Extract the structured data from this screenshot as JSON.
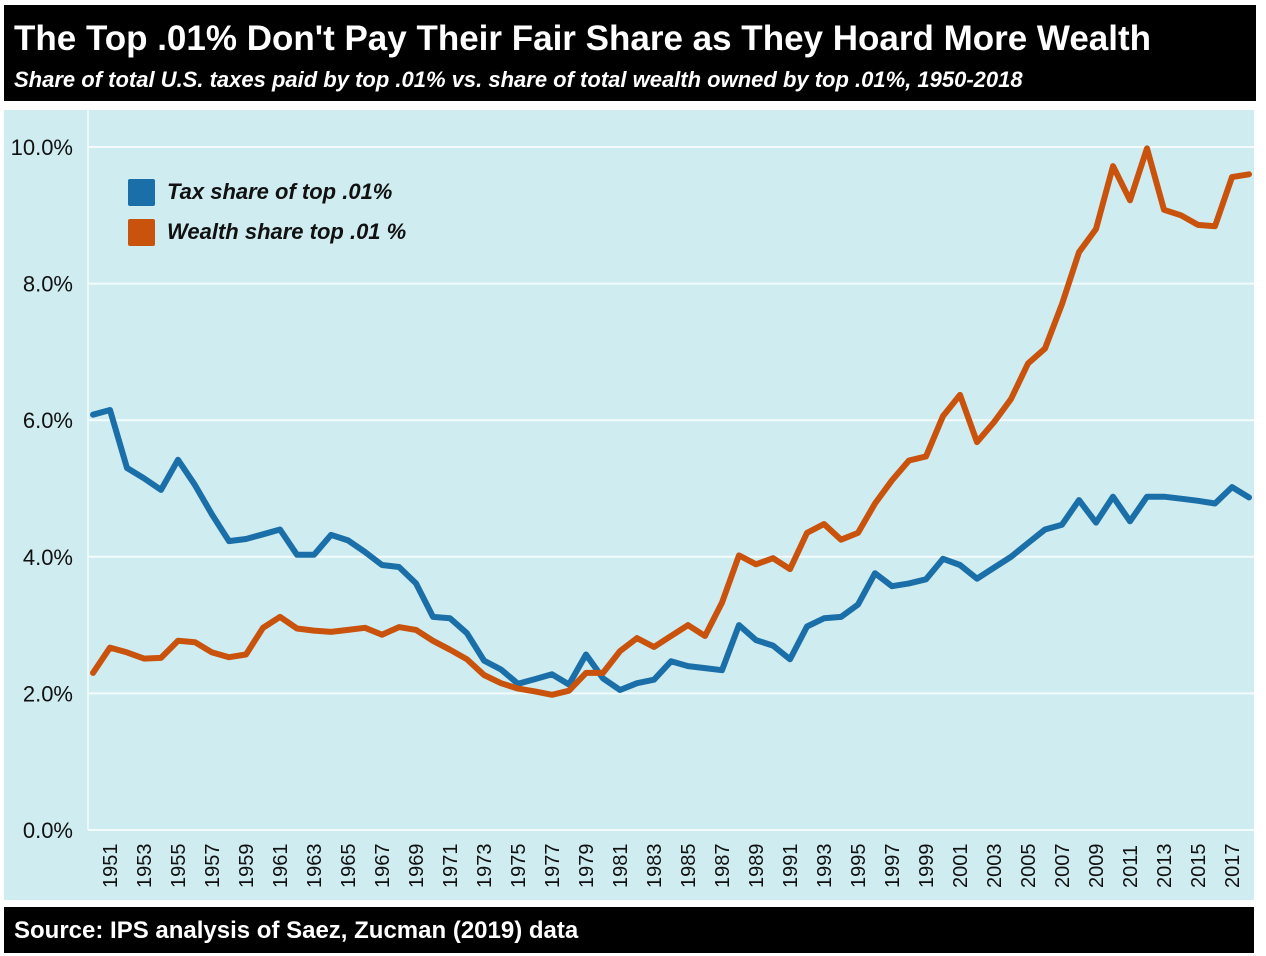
{
  "header": {
    "title": "The Top .01% Don't Pay Their Fair Share as They Hoard More Wealth",
    "subtitle": "Share of total U.S. taxes paid by top .01% vs. share of total wealth owned by top .01%, 1950-2018"
  },
  "footer": {
    "source": "Source: IPS analysis of Saez, Zucman (2019) data"
  },
  "colors": {
    "header_bg": "#000000",
    "plot_bg": "#cfecf0",
    "gridline": "#f4fbfc",
    "tax_series": "#1b6fa8",
    "wealth_series": "#c9530c"
  },
  "chart_data": {
    "type": "line",
    "title": "The Top .01% Don't Pay Their Fair Share as They Hoard More Wealth",
    "subtitle": "Share of total U.S. taxes paid by top .01% vs. share of total wealth owned by top .01%, 1950-2018",
    "xlabel": "",
    "ylabel": "",
    "ylim": [
      0,
      10
    ],
    "xlim": [
      1950,
      2018
    ],
    "grid": true,
    "legend_position": "top-left",
    "y_ticks": [
      "0.0%",
      "2.0%",
      "4.0%",
      "6.0%",
      "8.0%",
      "10.0%"
    ],
    "y_tick_values": [
      0,
      2,
      4,
      6,
      8,
      10
    ],
    "x_tick_labels": [
      "1951",
      "1953",
      "1955",
      "1957",
      "1959",
      "1961",
      "1963",
      "1965",
      "1967",
      "1969",
      "1971",
      "1973",
      "1975",
      "1977",
      "1979",
      "1981",
      "1983",
      "1985",
      "1987",
      "1989",
      "1991",
      "1993",
      "1995",
      "1997",
      "1999",
      "2001",
      "2003",
      "2005",
      "2007",
      "2009",
      "2011",
      "2013",
      "2015",
      "2017"
    ],
    "x": [
      1950,
      1951,
      1952,
      1953,
      1954,
      1955,
      1956,
      1957,
      1958,
      1959,
      1960,
      1961,
      1962,
      1963,
      1964,
      1965,
      1966,
      1967,
      1968,
      1969,
      1970,
      1971,
      1972,
      1973,
      1974,
      1975,
      1976,
      1977,
      1978,
      1979,
      1980,
      1981,
      1982,
      1983,
      1984,
      1985,
      1986,
      1987,
      1988,
      1989,
      1990,
      1991,
      1992,
      1993,
      1994,
      1995,
      1996,
      1997,
      1998,
      1999,
      2000,
      2001,
      2002,
      2003,
      2004,
      2005,
      2006,
      2007,
      2008,
      2009,
      2010,
      2011,
      2012,
      2013,
      2014,
      2015,
      2016,
      2017,
      2018
    ],
    "series": [
      {
        "name": "Tax share of top .01%",
        "color": "#1b6fa8",
        "values": [
          6.08,
          6.15,
          5.3,
          5.15,
          4.98,
          5.42,
          5.05,
          4.62,
          4.23,
          4.26,
          4.33,
          4.4,
          4.03,
          4.03,
          4.32,
          4.24,
          4.07,
          3.88,
          3.85,
          3.61,
          3.12,
          3.1,
          2.88,
          2.48,
          2.35,
          2.14,
          2.21,
          2.28,
          2.13,
          2.57,
          2.22,
          2.05,
          2.15,
          2.2,
          2.47,
          2.4,
          2.37,
          2.34,
          3.0,
          2.78,
          2.7,
          2.5,
          2.98,
          3.1,
          3.12,
          3.3,
          3.76,
          3.57,
          3.61,
          3.67,
          3.97,
          3.88,
          3.68,
          3.84,
          4.0,
          4.2,
          4.4,
          4.47,
          4.83,
          4.5,
          4.88,
          4.52,
          4.88,
          4.88,
          4.85,
          4.82,
          4.78,
          5.02,
          4.87
        ]
      },
      {
        "name": "Wealth share top .01 %",
        "color": "#c9530c",
        "values": [
          2.3,
          2.67,
          2.6,
          2.51,
          2.52,
          2.77,
          2.75,
          2.6,
          2.53,
          2.57,
          2.96,
          3.12,
          2.95,
          2.92,
          2.9,
          2.93,
          2.96,
          2.86,
          2.97,
          2.93,
          2.77,
          2.64,
          2.5,
          2.27,
          2.15,
          2.07,
          2.03,
          1.98,
          2.04,
          2.3,
          2.3,
          2.62,
          2.81,
          2.68,
          2.84,
          3.0,
          2.84,
          3.33,
          4.02,
          3.89,
          3.98,
          3.82,
          4.35,
          4.48,
          4.25,
          4.35,
          4.78,
          5.12,
          5.41,
          5.47,
          6.06,
          6.37,
          5.68,
          5.97,
          6.31,
          6.83,
          7.05,
          7.7,
          8.46,
          8.8,
          9.72,
          9.22,
          9.98,
          9.08,
          9.0,
          8.86,
          8.84,
          9.56,
          9.6
        ]
      }
    ]
  }
}
